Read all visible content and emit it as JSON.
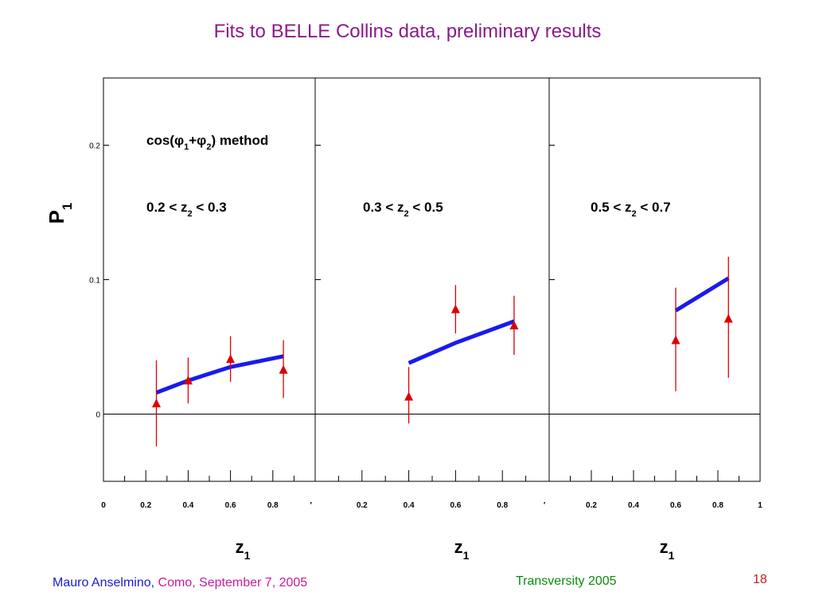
{
  "slide": {
    "title": "Fits to BELLE Collins data, preliminary results",
    "footer": {
      "author": "Mauro Anselmino,",
      "venue": " Como, September 7, 2005",
      "conference": "Transversity 2005",
      "page_number": "18"
    }
  },
  "chart_data": {
    "type": "scatter",
    "ylabel": "P",
    "ylabel_sub": "1",
    "method_label": "cos(φ₁+φ₂) method",
    "y_ticks": [
      "0",
      "0.1",
      "0.2"
    ],
    "ylim": [
      -0.05,
      0.25
    ],
    "xlim": [
      0,
      1
    ],
    "colors": {
      "points": "#dd0000",
      "fit": "#1a1aee",
      "frame": "#000000"
    },
    "panels": [
      {
        "label": "0.2 < z₂ < 0.3",
        "xlabel": "z₁",
        "x_tick_labels": [
          {
            "v": 0,
            "t": "0"
          },
          {
            "v": 0.2,
            "t": "0.2"
          },
          {
            "v": 0.4,
            "t": "0.4"
          },
          {
            "v": 0.6,
            "t": "0.6"
          },
          {
            "v": 0.8,
            "t": "0.8"
          },
          {
            "v": 0.98,
            "t": "′"
          }
        ],
        "points": [
          {
            "x": 0.25,
            "y": 0.008,
            "lo": -0.024,
            "hi": 0.04
          },
          {
            "x": 0.4,
            "y": 0.025,
            "lo": 0.008,
            "hi": 0.042
          },
          {
            "x": 0.6,
            "y": 0.041,
            "lo": 0.024,
            "hi": 0.058
          },
          {
            "x": 0.85,
            "y": 0.033,
            "lo": 0.012,
            "hi": 0.055
          }
        ],
        "fit": [
          {
            "x": 0.25,
            "y": 0.016
          },
          {
            "x": 0.4,
            "y": 0.025
          },
          {
            "x": 0.6,
            "y": 0.035
          },
          {
            "x": 0.85,
            "y": 0.043
          }
        ]
      },
      {
        "label": "0.3 < z₂ < 0.5",
        "xlabel": "z₁",
        "x_tick_labels": [
          {
            "v": 0.2,
            "t": "0.2"
          },
          {
            "v": 0.4,
            "t": "0.4"
          },
          {
            "v": 0.6,
            "t": "0.6"
          },
          {
            "v": 0.8,
            "t": "0.8"
          },
          {
            "v": 0.98,
            "t": "′"
          }
        ],
        "points": [
          {
            "x": 0.4,
            "y": 0.013,
            "lo": -0.007,
            "hi": 0.035
          },
          {
            "x": 0.6,
            "y": 0.078,
            "lo": 0.06,
            "hi": 0.096
          },
          {
            "x": 0.85,
            "y": 0.066,
            "lo": 0.044,
            "hi": 0.088
          }
        ],
        "fit": [
          {
            "x": 0.4,
            "y": 0.038
          },
          {
            "x": 0.6,
            "y": 0.053
          },
          {
            "x": 0.85,
            "y": 0.069
          }
        ]
      },
      {
        "label": "0.5 < z₂ < 0.7",
        "xlabel": "z₁",
        "x_tick_labels": [
          {
            "v": 0.2,
            "t": "0.2"
          },
          {
            "v": 0.4,
            "t": "0.4"
          },
          {
            "v": 0.6,
            "t": "0.6"
          },
          {
            "v": 0.8,
            "t": "0.8"
          },
          {
            "v": 1.0,
            "t": "1"
          }
        ],
        "points": [
          {
            "x": 0.6,
            "y": 0.055,
            "lo": 0.017,
            "hi": 0.094
          },
          {
            "x": 0.85,
            "y": 0.071,
            "lo": 0.027,
            "hi": 0.117
          }
        ],
        "fit": [
          {
            "x": 0.6,
            "y": 0.077
          },
          {
            "x": 0.85,
            "y": 0.101
          }
        ]
      }
    ]
  }
}
